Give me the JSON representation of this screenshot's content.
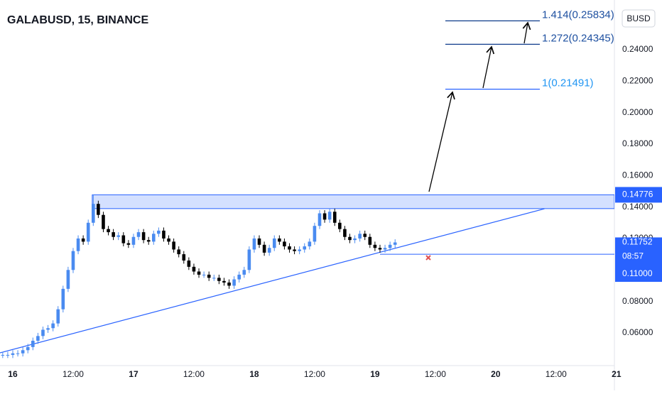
{
  "chart_data": {
    "type": "candlestick",
    "title": "GALABUSD, 15, BINANCE",
    "currency": "BUSD",
    "x": [
      -2,
      -1,
      0,
      1,
      2,
      3,
      4,
      5,
      6,
      7,
      8,
      9,
      10,
      11,
      12,
      13,
      14,
      15,
      16,
      17,
      18,
      19,
      20,
      21,
      22,
      23,
      24,
      25,
      26,
      27,
      28,
      29,
      30,
      31,
      32,
      33,
      34,
      35,
      36,
      37,
      38,
      39,
      40,
      41,
      42,
      43,
      44,
      45,
      46,
      47,
      48,
      49,
      50,
      51,
      52,
      53,
      54,
      55,
      56,
      57,
      58,
      59,
      60,
      61,
      62,
      63,
      64,
      65,
      66,
      67,
      68,
      69,
      70,
      71,
      72,
      73,
      74,
      75,
      76
    ],
    "open": [
      0.046,
      0.046,
      0.046,
      0.047,
      0.047,
      0.049,
      0.051,
      0.055,
      0.058,
      0.062,
      0.063,
      0.066,
      0.075,
      0.088,
      0.1,
      0.112,
      0.12,
      0.118,
      0.13,
      0.142,
      0.135,
      0.126,
      0.124,
      0.121,
      0.122,
      0.117,
      0.116,
      0.121,
      0.124,
      0.119,
      0.118,
      0.123,
      0.125,
      0.12,
      0.118,
      0.113,
      0.11,
      0.106,
      0.102,
      0.099,
      0.097,
      0.097,
      0.095,
      0.095,
      0.093,
      0.092,
      0.09,
      0.094,
      0.097,
      0.1,
      0.113,
      0.12,
      0.116,
      0.111,
      0.114,
      0.12,
      0.118,
      0.115,
      0.113,
      0.112,
      0.113,
      0.115,
      0.118,
      0.128,
      0.136,
      0.132,
      0.137,
      0.13,
      0.126,
      0.121,
      0.119,
      0.12,
      0.123,
      0.121,
      0.116,
      0.114,
      0.113,
      0.114,
      0.116
    ],
    "high": [
      0.048,
      0.048,
      0.049,
      0.049,
      0.051,
      0.053,
      0.057,
      0.06,
      0.064,
      0.065,
      0.068,
      0.077,
      0.09,
      0.102,
      0.114,
      0.122,
      0.122,
      0.132,
      0.148,
      0.144,
      0.137,
      0.128,
      0.126,
      0.124,
      0.124,
      0.119,
      0.123,
      0.126,
      0.126,
      0.121,
      0.125,
      0.127,
      0.127,
      0.122,
      0.12,
      0.115,
      0.112,
      0.108,
      0.104,
      0.101,
      0.099,
      0.099,
      0.097,
      0.097,
      0.095,
      0.094,
      0.096,
      0.099,
      0.102,
      0.115,
      0.122,
      0.122,
      0.118,
      0.116,
      0.122,
      0.122,
      0.12,
      0.117,
      0.115,
      0.115,
      0.117,
      0.12,
      0.13,
      0.138,
      0.138,
      0.139,
      0.139,
      0.132,
      0.128,
      0.123,
      0.122,
      0.125,
      0.125,
      0.123,
      0.118,
      0.116,
      0.116,
      0.118,
      0.1195
    ],
    "low": [
      0.044,
      0.044,
      0.044,
      0.045,
      0.045,
      0.047,
      0.049,
      0.053,
      0.056,
      0.06,
      0.061,
      0.064,
      0.073,
      0.086,
      0.098,
      0.11,
      0.116,
      0.116,
      0.128,
      0.133,
      0.124,
      0.122,
      0.119,
      0.119,
      0.115,
      0.114,
      0.114,
      0.119,
      0.117,
      0.116,
      0.116,
      0.121,
      0.118,
      0.116,
      0.111,
      0.108,
      0.104,
      0.1,
      0.097,
      0.095,
      0.095,
      0.093,
      0.093,
      0.091,
      0.09,
      0.088,
      0.088,
      0.092,
      0.095,
      0.098,
      0.111,
      0.114,
      0.109,
      0.109,
      0.112,
      0.116,
      0.113,
      0.111,
      0.11,
      0.11,
      0.111,
      0.113,
      0.116,
      0.126,
      0.13,
      0.13,
      0.128,
      0.124,
      0.119,
      0.117,
      0.117,
      0.118,
      0.119,
      0.114,
      0.112,
      0.111,
      0.111,
      0.112,
      0.114
    ],
    "close": [
      0.046,
      0.046,
      0.047,
      0.047,
      0.049,
      0.051,
      0.055,
      0.058,
      0.062,
      0.063,
      0.066,
      0.075,
      0.088,
      0.1,
      0.112,
      0.12,
      0.118,
      0.13,
      0.142,
      0.135,
      0.126,
      0.124,
      0.121,
      0.122,
      0.117,
      0.116,
      0.121,
      0.124,
      0.119,
      0.118,
      0.123,
      0.125,
      0.12,
      0.118,
      0.113,
      0.11,
      0.106,
      0.102,
      0.099,
      0.097,
      0.097,
      0.095,
      0.095,
      0.093,
      0.092,
      0.09,
      0.094,
      0.097,
      0.1,
      0.113,
      0.12,
      0.116,
      0.111,
      0.114,
      0.12,
      0.118,
      0.115,
      0.113,
      0.112,
      0.113,
      0.115,
      0.118,
      0.128,
      0.136,
      0.132,
      0.137,
      0.13,
      0.126,
      0.121,
      0.119,
      0.12,
      0.123,
      0.121,
      0.116,
      0.114,
      0.113,
      0.114,
      0.116,
      0.1175
    ],
    "up_color": "#4a8bf0",
    "down_color": "#000000",
    "xlim": [
      -2.54,
      119.6
    ],
    "xticks": [
      {
        "value": 0,
        "label": "16"
      },
      {
        "value": 12,
        "label": "12:00"
      },
      {
        "value": 24,
        "label": "17"
      },
      {
        "value": 36,
        "label": "12:00"
      },
      {
        "value": 48,
        "label": "18"
      },
      {
        "value": 60,
        "label": "12:00"
      },
      {
        "value": 72,
        "label": "19"
      },
      {
        "value": 84,
        "label": "12:00"
      },
      {
        "value": 96,
        "label": "20"
      },
      {
        "value": 108,
        "label": "12:00"
      },
      {
        "value": 120,
        "label": "21"
      }
    ],
    "ylim": [
      0.0392,
      0.2716
    ],
    "yticks": [
      {
        "value": 0.06,
        "label": "0.06000"
      },
      {
        "value": 0.08,
        "label": "0.08000"
      },
      {
        "value": 0.1,
        "label": "0.10000"
      },
      {
        "value": 0.12,
        "label": "0.12000"
      },
      {
        "value": 0.14,
        "label": "0.14000"
      },
      {
        "value": 0.16,
        "label": "0.16000"
      },
      {
        "value": 0.18,
        "label": "0.18000"
      },
      {
        "value": 0.2,
        "label": "0.20000"
      },
      {
        "value": 0.22,
        "label": "0.22000"
      },
      {
        "value": 0.24,
        "label": "0.24000"
      }
    ],
    "zone": {
      "x": 15.8,
      "top": 0.14776,
      "bottom": 0.139,
      "label": "0.14776"
    },
    "support": {
      "x": 73,
      "value": 0.11,
      "label": "0.11000"
    },
    "trendline": {
      "x": [
        -2.54,
        105.7
      ],
      "y": [
        0.0473,
        0.1389
      ]
    },
    "last_price": {
      "value": 0.11752,
      "label": "0.11752",
      "countdown": "08:57"
    },
    "levels": [
      {
        "label": "1(0.21491)",
        "value": 0.21491
      },
      {
        "label": "1.272(0.24345)",
        "value": 0.24345
      },
      {
        "label": "1.414(0.25834)",
        "value": 0.25834
      }
    ]
  }
}
